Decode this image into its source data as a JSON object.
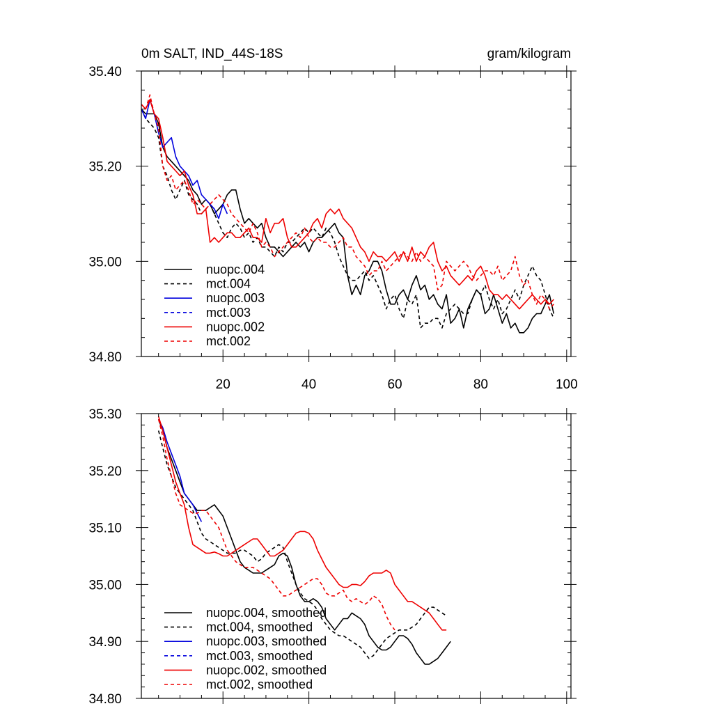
{
  "chart_data": [
    {
      "type": "line",
      "title_left": "0m SALT, IND_44S-18S",
      "title_right": "gram/kilogram",
      "xlabel": "",
      "ylabel": "",
      "xlim": [
        1,
        101
      ],
      "ylim": [
        34.8,
        35.4
      ],
      "x_ticks": [
        "20",
        "40",
        "60",
        "80",
        "100"
      ],
      "y_ticks": [
        "34.80",
        "35.00",
        "35.20",
        "35.40"
      ],
      "legend": [
        "nuopc.004",
        "mct.004",
        "nuopc.003",
        "mct.003",
        "nuopc.002",
        "mct.002"
      ],
      "series": [
        {
          "name": "nuopc.004",
          "color": "#000000",
          "dash": "solid",
          "x_start": 1,
          "values": [
            35.32,
            35.31,
            35.31,
            35.31,
            35.29,
            35.24,
            35.22,
            35.21,
            35.2,
            35.19,
            35.18,
            35.17,
            35.15,
            35.14,
            35.12,
            35.13,
            35.12,
            35.1,
            35.11,
            35.12,
            35.14,
            35.15,
            35.15,
            35.11,
            35.08,
            35.09,
            35.08,
            35.07,
            35.08,
            35.05,
            35.03,
            35.03,
            35.02,
            35.01,
            35.02,
            35.03,
            35.04,
            35.03,
            35.04,
            35.02,
            35.04,
            35.05,
            35.05,
            35.06,
            35.07,
            35.08,
            35.06,
            35.05,
            34.97,
            34.93,
            34.95,
            34.93,
            34.97,
            34.98,
            35,
            35,
            34.98,
            34.94,
            34.91,
            34.91,
            34.93,
            34.94,
            34.92,
            34.95,
            34.97,
            34.94,
            34.95,
            34.92,
            34.93,
            34.91,
            34.9,
            34.93,
            34.87,
            34.88,
            34.9,
            34.86,
            34.9,
            34.92,
            34.94,
            34.93,
            34.89,
            34.9,
            34.93,
            34.9,
            34.87,
            34.89,
            34.86,
            34.87,
            34.85,
            34.85,
            34.86,
            34.88,
            34.89,
            34.89,
            34.91,
            34.93,
            34.89
          ]
        },
        {
          "name": "mct.004",
          "color": "#000000",
          "dash": "dashed",
          "x_start": 1,
          "values": [
            35.32,
            35.3,
            35.29,
            35.28,
            35.26,
            35.2,
            35.18,
            35.15,
            35.13,
            35.15,
            35.17,
            35.14,
            35.13,
            35.12,
            35.1,
            35.11,
            35.12,
            35.1,
            35.08,
            35.06,
            35.05,
            35.07,
            35.08,
            35.07,
            35.05,
            35.06,
            35.04,
            35.05,
            35.03,
            35.03,
            35.02,
            35.01,
            35.03,
            35.02,
            35.04,
            35.04,
            35.05,
            35.06,
            35.07,
            35.06,
            35.07,
            35.06,
            35.05,
            35.07,
            35.06,
            35.04,
            35.01,
            34.99,
            34.97,
            34.96,
            34.96,
            34.97,
            34.98,
            34.96,
            34.97,
            34.95,
            34.93,
            34.9,
            34.92,
            34.93,
            34.9,
            34.88,
            34.92,
            34.91,
            34.93,
            34.86,
            34.87,
            34.87,
            34.88,
            34.88,
            34.86,
            34.89,
            34.9,
            34.91,
            34.9,
            34.89,
            34.89,
            34.92,
            34.94,
            34.93,
            34.95,
            34.92,
            34.9,
            34.92,
            34.89,
            34.9,
            34.92,
            34.94,
            34.92,
            34.95,
            34.97,
            34.99,
            34.97,
            34.96,
            34.93,
            34.9,
            34.88
          ]
        },
        {
          "name": "nuopc.003",
          "color": "#0000dd",
          "dash": "solid",
          "x_start": 1,
          "values": [
            35.32,
            35.3,
            35.34,
            35.31,
            35.27,
            35.24,
            35.25,
            35.26,
            35.22,
            35.2,
            35.19,
            35.18,
            35.16,
            35.17,
            35.14,
            35.13,
            35.12,
            35.11,
            35.09,
            35.12,
            35.1
          ]
        },
        {
          "name": "mct.003",
          "color": "#0000dd",
          "dash": "dashed",
          "x_start": 1,
          "values": []
        },
        {
          "name": "nuopc.002",
          "color": "#ee0000",
          "dash": "solid",
          "x_start": 1,
          "values": [
            35.33,
            35.32,
            35.34,
            35.31,
            35.3,
            35.26,
            35.21,
            35.2,
            35.19,
            35.18,
            35.19,
            35.16,
            35.14,
            35.1,
            35.1,
            35.11,
            35.04,
            35.05,
            35.04,
            35.05,
            35.06,
            35.06,
            35.05,
            35.05,
            35.06,
            35.07,
            35.05,
            35.05,
            35.04,
            35.09,
            35.06,
            35.08,
            35.08,
            35.09,
            35.05,
            35.03,
            35.03,
            35.04,
            35.05,
            35.06,
            35.08,
            35.09,
            35.07,
            35.1,
            35.11,
            35.1,
            35.11,
            35.09,
            35.08,
            35.07,
            35.05,
            35.03,
            35.02,
            35,
            35.02,
            35.01,
            35.01,
            35,
            35.01,
            35.02,
            35,
            35.02,
            35,
            35.03,
            35,
            35.02,
            35.01,
            35.03,
            35.04,
            35,
            34.98,
            34.99,
            34.97,
            34.96,
            34.95,
            34.96,
            34.97,
            34.96,
            34.98,
            34.99,
            34.97,
            34.94,
            34.93,
            34.93,
            34.92,
            34.93,
            34.92,
            34.91,
            34.9,
            34.91,
            34.92,
            34.93,
            34.92,
            34.91,
            34.92,
            34.91,
            34.92
          ]
        },
        {
          "name": "mct.002",
          "color": "#ee0000",
          "dash": "dashed",
          "x_start": 1,
          "values": [
            35.33,
            35.32,
            35.35,
            35.31,
            35.28,
            35.2,
            35.17,
            35.18,
            35.15,
            35.16,
            35.17,
            35.15,
            35.12,
            35.13,
            35.12,
            35.11,
            35.12,
            35.13,
            35.14,
            35.13,
            35.12,
            35.1,
            35.09,
            35.08,
            35.07,
            35.06,
            35.08,
            35.06,
            35.03,
            35.04,
            35.03,
            35.01,
            35.02,
            35.03,
            35.04,
            35.05,
            35.06,
            35.05,
            35.07,
            35.05,
            35.04,
            35.05,
            35.04,
            35.04,
            35.03,
            35.03,
            35.04,
            35.05,
            35.03,
            35.03,
            35.01,
            35,
            34.99,
            34.97,
            34.98,
            34.98,
            35,
            34.98,
            34.99,
            35,
            35.01,
            35.02,
            35.01,
            35,
            35.02,
            35,
            35.01,
            35,
            34.99,
            34.94,
            34.95,
            35,
            34.99,
            34.98,
            34.99,
            35,
            34.99,
            34.97,
            34.96,
            34.97,
            34.98,
            34.98,
            34.97,
            34.99,
            34.96,
            34.97,
            34.98,
            35.01,
            34.97,
            34.95,
            34.96,
            34.93,
            34.91,
            34.93,
            34.92,
            34.9,
            34.91
          ]
        }
      ]
    },
    {
      "type": "line",
      "xlabel": "",
      "ylabel": "",
      "xlim": [
        1,
        101
      ],
      "ylim": [
        34.8,
        35.3
      ],
      "x_ticks": [],
      "y_ticks": [
        "34.80",
        "34.90",
        "35.00",
        "35.10",
        "35.20",
        "35.30"
      ],
      "legend": [
        "nuopc.004, smoothed",
        "mct.004, smoothed",
        "nuopc.003, smoothed",
        "mct.003, smoothed",
        "nuopc.002, smoothed",
        "mct.002, smoothed"
      ],
      "series": [
        {
          "name": "nuopc.004, smoothed",
          "color": "#000000",
          "dash": "solid",
          "x_start": 5,
          "values": [
            35.29,
            35.27,
            35.24,
            35.22,
            35.2,
            35.18,
            35.16,
            35.15,
            35.14,
            35.13,
            35.13,
            35.13,
            35.135,
            35.14,
            35.13,
            35.12,
            35.1,
            35.08,
            35.06,
            35.04,
            35.03,
            35.025,
            35.02,
            35.02,
            35.02,
            35.025,
            35.03,
            35.035,
            35.05,
            35.055,
            35.05,
            35.03,
            35.0,
            34.98,
            34.97,
            34.97,
            34.975,
            34.97,
            34.96,
            34.94,
            34.93,
            34.92,
            34.93,
            34.94,
            34.94,
            34.95,
            34.945,
            34.94,
            34.93,
            34.91,
            34.9,
            34.89,
            34.885,
            34.885,
            34.89,
            34.9,
            34.91,
            34.91,
            34.905,
            34.895,
            34.88,
            34.87,
            34.86,
            34.86,
            34.865,
            34.87,
            34.88,
            34.89,
            34.9
          ]
        },
        {
          "name": "mct.004, smoothed",
          "color": "#000000",
          "dash": "dashed",
          "x_start": 5,
          "values": [
            35.27,
            35.24,
            35.21,
            35.19,
            35.17,
            35.16,
            35.15,
            35.14,
            35.13,
            35.11,
            35.09,
            35.08,
            35.075,
            35.07,
            35.065,
            35.06,
            35.055,
            35.055,
            35.055,
            35.06,
            35.06,
            35.055,
            35.05,
            35.04,
            35.045,
            35.055,
            35.06,
            35.065,
            35.07,
            35.065,
            35.04,
            35.02,
            35.0,
            34.985,
            34.975,
            34.97,
            34.965,
            34.955,
            34.94,
            34.93,
            34.92,
            34.915,
            34.91,
            34.91,
            34.905,
            34.9,
            34.895,
            34.89,
            34.88,
            34.87,
            34.875,
            34.885,
            34.895,
            34.905,
            34.91,
            34.915,
            34.92,
            34.92,
            34.92,
            34.925,
            34.93,
            34.94,
            34.95,
            34.96,
            34.96,
            34.955,
            34.95,
            34.945
          ]
        },
        {
          "name": "nuopc.003, smoothed",
          "color": "#0000dd",
          "dash": "solid",
          "x_start": 5,
          "values": [
            35.29,
            35.275,
            35.25,
            35.23,
            35.21,
            35.19,
            35.16,
            35.15,
            35.14,
            35.125,
            35.11
          ]
        },
        {
          "name": "mct.003, smoothed",
          "color": "#0000dd",
          "dash": "dashed",
          "x_start": 5,
          "values": []
        },
        {
          "name": "nuopc.002, smoothed",
          "color": "#ee0000",
          "dash": "solid",
          "x_start": 5,
          "values": [
            35.295,
            35.27,
            35.24,
            35.21,
            35.18,
            35.16,
            35.14,
            35.1,
            35.07,
            35.065,
            35.06,
            35.055,
            35.055,
            35.057,
            35.054,
            35.05,
            35.05,
            35.055,
            35.06,
            35.065,
            35.07,
            35.075,
            35.08,
            35.08,
            35.07,
            35.06,
            35.05,
            35.05,
            35.055,
            35.06,
            35.07,
            35.08,
            35.09,
            35.093,
            35.093,
            35.09,
            35.08,
            35.06,
            35.045,
            35.03,
            35.02,
            35.01,
            35.0,
            34.995,
            34.995,
            35.0,
            35.0,
            34.998,
            35.005,
            35.015,
            35.02,
            35.02,
            35.02,
            35.025,
            35.02,
            35.0,
            34.99,
            34.98,
            34.97,
            34.97,
            34.965,
            34.96,
            34.955,
            34.95,
            34.94,
            34.93,
            34.92,
            34.92
          ]
        },
        {
          "name": "mct.002, smoothed",
          "color": "#ee0000",
          "dash": "dashed",
          "x_start": 5,
          "values": [
            35.29,
            35.26,
            35.22,
            35.19,
            35.16,
            35.14,
            35.135,
            35.13,
            35.125,
            35.125,
            35.13,
            35.13,
            35.12,
            35.11,
            35.1,
            35.08,
            35.06,
            35.05,
            35.04,
            35.035,
            35.03,
            35.03,
            35.03,
            35.025,
            35.02,
            35.015,
            35.01,
            35.0,
            34.99,
            34.98,
            34.98,
            34.985,
            34.99,
            34.995,
            35.0,
            35.005,
            35.01,
            35.01,
            35.0,
            34.985,
            34.98,
            34.98,
            34.985,
            34.99,
            34.975,
            34.97,
            34.975,
            34.97,
            34.965,
            34.97,
            34.98,
            34.975,
            34.965,
            34.945,
            34.93,
            34.92
          ]
        }
      ]
    }
  ]
}
